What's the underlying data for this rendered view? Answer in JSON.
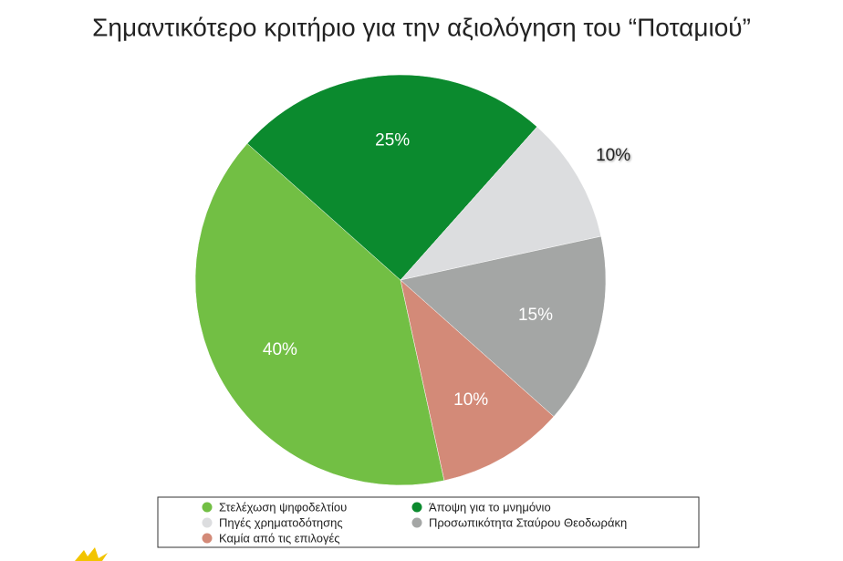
{
  "chart_data": {
    "type": "pie",
    "title": "Σημαντικότερο κριτήριο για την αξιολόγηση του “Ποταμιού”",
    "categories": [
      "Στελέχωση ψηφοδελτίου",
      "Άποψη για το μνημόνιο",
      "Πηγές χρηματοδότησης",
      "Προσωπικότητα Σταύρου Θεοδωράκη",
      "Καμία από τις επιλογές"
    ],
    "values": [
      40,
      25,
      10,
      15,
      10
    ],
    "value_labels": [
      "40%",
      "25%",
      "10%",
      "15%",
      "10%"
    ],
    "colors": [
      "#72bf44",
      "#0b8a2e",
      "#dcdddf",
      "#a4a6a5",
      "#d38a78"
    ]
  }
}
